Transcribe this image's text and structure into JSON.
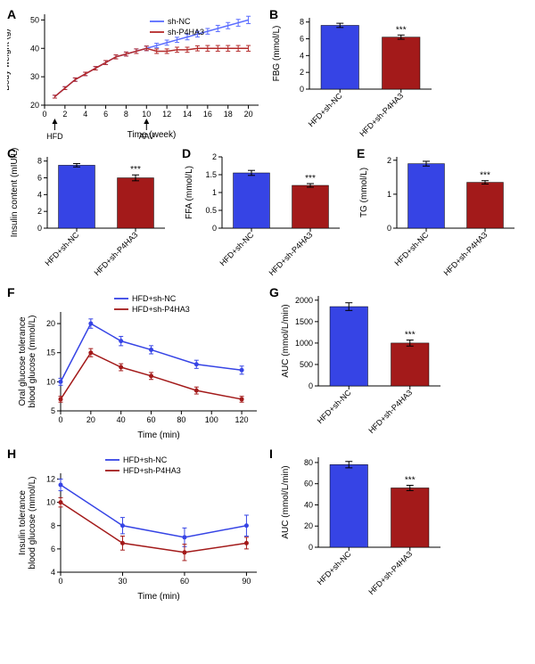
{
  "colors": {
    "nc": "#3644e5",
    "p4": "#a31a1a",
    "nc_line": "#5a6cff",
    "p4_line": "#b42a2a",
    "black": "#000000",
    "white": "#ffffff"
  },
  "groups": {
    "nc": "HFD+sh-NC",
    "p4": "HFD+sh-P4HA3"
  },
  "A": {
    "label": "A",
    "type": "line",
    "xlabel": "Time (week)",
    "ylabel": "Body weight (g)",
    "xlim": [
      0,
      21
    ],
    "ylim": [
      20,
      52
    ],
    "xticks": [
      0,
      2,
      4,
      6,
      8,
      10,
      12,
      14,
      16,
      18,
      20
    ],
    "yticks": [
      20,
      30,
      40,
      50
    ],
    "series": [
      {
        "name": "sh-NC",
        "color": "#5a6cff",
        "x": [
          1,
          2,
          3,
          4,
          5,
          6,
          7,
          8,
          9,
          10,
          11,
          12,
          13,
          14,
          15,
          16,
          17,
          18,
          19,
          20
        ],
        "y": [
          23,
          26,
          29,
          31,
          33,
          35,
          37,
          38,
          39,
          40,
          41,
          42,
          43,
          44,
          45,
          46,
          47,
          48,
          49,
          50
        ],
        "err": [
          0.5,
          0.5,
          0.6,
          0.6,
          0.6,
          0.7,
          0.7,
          0.7,
          0.8,
          0.8,
          0.8,
          0.9,
          0.9,
          1,
          1,
          1,
          1.1,
          1.1,
          1.2,
          1.3
        ]
      },
      {
        "name": "sh-P4HA3",
        "color": "#b42a2a",
        "x": [
          1,
          2,
          3,
          4,
          5,
          6,
          7,
          8,
          9,
          10,
          11,
          12,
          13,
          14,
          15,
          16,
          17,
          18,
          19,
          20
        ],
        "y": [
          23,
          26,
          29,
          31,
          33,
          35,
          37,
          38,
          39,
          40,
          39,
          39,
          39.5,
          39.5,
          40,
          40,
          40,
          40,
          40,
          40
        ],
        "err": [
          0.5,
          0.5,
          0.6,
          0.6,
          0.6,
          0.7,
          0.7,
          0.7,
          0.8,
          0.8,
          0.8,
          0.8,
          0.9,
          0.9,
          0.9,
          1,
          1,
          1,
          1,
          1
        ]
      }
    ],
    "legend": [
      "sh-NC",
      "sh-P4HA3"
    ],
    "annotations": {
      "HFD_x": 1,
      "AAV_x": 10
    }
  },
  "B": {
    "label": "B",
    "type": "bar",
    "ylabel": "FBG  (mmol/L)",
    "ylim": [
      0,
      8.5
    ],
    "yticks": [
      0,
      2,
      4,
      6,
      8
    ],
    "bars": [
      {
        "label": "HFD+sh-NC",
        "value": 7.6,
        "err": 0.25,
        "color": "#3644e5"
      },
      {
        "label": "HFD+sh-P4HA3",
        "value": 6.2,
        "err": 0.25,
        "color": "#a31a1a",
        "sig": "***"
      }
    ],
    "bar_width": 0.62
  },
  "C": {
    "label": "C",
    "type": "bar",
    "ylabel": "Insulin content (mIU/L)",
    "ylim": [
      0,
      8.5
    ],
    "yticks": [
      0,
      2,
      4,
      6,
      8
    ],
    "bars": [
      {
        "label": "HFD+sh-NC",
        "value": 7.5,
        "err": 0.2,
        "color": "#3644e5"
      },
      {
        "label": "HFD+sh-P4HA3",
        "value": 6.0,
        "err": 0.35,
        "color": "#a31a1a",
        "sig": "***"
      }
    ],
    "bar_width": 0.62
  },
  "D": {
    "label": "D",
    "type": "bar",
    "ylabel": "FFA (mmol/L)",
    "ylim": [
      0,
      2
    ],
    "yticks": [
      0,
      0.5,
      1,
      1.5,
      2
    ],
    "bars": [
      {
        "label": "HFD+sh-NC",
        "value": 1.55,
        "err": 0.07,
        "color": "#3644e5"
      },
      {
        "label": "HFD+sh-P4HA3",
        "value": 1.2,
        "err": 0.05,
        "color": "#a31a1a",
        "sig": "***"
      }
    ],
    "bar_width": 0.62
  },
  "E": {
    "label": "E",
    "type": "bar",
    "ylabel": "TG (mmol/L)",
    "ylim": [
      0,
      2.1
    ],
    "yticks": [
      0,
      1,
      2
    ],
    "bars": [
      {
        "label": "HFD+sh-NC",
        "value": 1.9,
        "err": 0.07,
        "color": "#3644e5"
      },
      {
        "label": "HFD+sh-P4HA3",
        "value": 1.35,
        "err": 0.05,
        "color": "#a31a1a",
        "sig": "***"
      }
    ],
    "bar_width": 0.62
  },
  "F": {
    "label": "F",
    "type": "line",
    "xlabel": "Time (min)",
    "ylabel": "Oral glucose tolerance\nblood glucose (mmol/L)",
    "xlim": [
      0,
      130
    ],
    "ylim": [
      5,
      22
    ],
    "xticks": [
      0,
      20,
      40,
      60,
      80,
      100,
      120
    ],
    "yticks": [
      5,
      10,
      15,
      20
    ],
    "series": [
      {
        "name": "HFD+sh-NC",
        "color": "#3644e5",
        "x": [
          0,
          20,
          40,
          60,
          90,
          120
        ],
        "y": [
          10,
          20,
          17,
          15.5,
          13,
          12
        ],
        "err": [
          0.6,
          0.8,
          0.8,
          0.7,
          0.7,
          0.7
        ]
      },
      {
        "name": "HFD+sh-P4HA3",
        "color": "#a31a1a",
        "x": [
          0,
          20,
          40,
          60,
          90,
          120
        ],
        "y": [
          7,
          15,
          12.5,
          11,
          8.5,
          7
        ],
        "err": [
          0.5,
          0.7,
          0.6,
          0.6,
          0.6,
          0.5
        ]
      }
    ],
    "legend": [
      "HFD+sh-NC",
      "HFD+sh-P4HA3"
    ]
  },
  "G": {
    "label": "G",
    "type": "bar",
    "ylabel": "AUC (mmol/L/min)",
    "ylim": [
      0,
      2100
    ],
    "yticks": [
      0,
      500,
      1000,
      1500,
      2000
    ],
    "bars": [
      {
        "label": "HFD+sh-NC",
        "value": 1850,
        "err": 90,
        "color": "#3644e5"
      },
      {
        "label": "HFD+sh-P4HA3",
        "value": 1000,
        "err": 70,
        "color": "#a31a1a",
        "sig": "***"
      }
    ],
    "bar_width": 0.62
  },
  "H": {
    "label": "H",
    "type": "line",
    "xlabel": "Time (min)",
    "ylabel": "Insulin tolerance\nblood glucose (mmol/L)",
    "xlim": [
      0,
      95
    ],
    "ylim": [
      4,
      12.5
    ],
    "xticks": [
      0,
      30,
      60,
      90
    ],
    "yticks": [
      4,
      6,
      8,
      10,
      12
    ],
    "series": [
      {
        "name": "HFD+sh-NC",
        "color": "#3644e5",
        "x": [
          0,
          30,
          60,
          90
        ],
        "y": [
          11.5,
          8,
          7,
          8
        ],
        "err": [
          0.5,
          0.7,
          0.8,
          0.9
        ]
      },
      {
        "name": "HFD+sh-P4HA3",
        "color": "#a31a1a",
        "x": [
          0,
          30,
          60,
          90
        ],
        "y": [
          10,
          6.5,
          5.7,
          6.5
        ],
        "err": [
          0.4,
          0.6,
          0.7,
          0.5
        ]
      }
    ],
    "legend": [
      "HFD+sh-NC",
      "HFD+sh-P4HA3"
    ]
  },
  "I": {
    "label": "I",
    "type": "bar",
    "ylabel": "AUC (mmol/L/min)",
    "ylim": [
      0,
      85
    ],
    "yticks": [
      0,
      20,
      40,
      60,
      80
    ],
    "bars": [
      {
        "label": "HFD+sh-NC",
        "value": 78,
        "err": 3,
        "color": "#3644e5"
      },
      {
        "label": "HFD+sh-P4HA3",
        "value": 56,
        "err": 2.5,
        "color": "#a31a1a",
        "sig": "***"
      }
    ],
    "bar_width": 0.62
  }
}
